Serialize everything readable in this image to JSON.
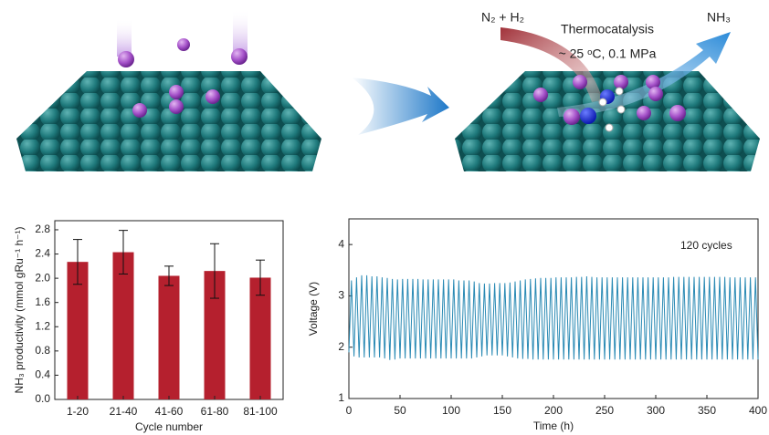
{
  "scheme": {
    "reactants": "N₂ + H₂",
    "process": "Thermocatalysis",
    "conditions": "~ 25 ᵒC, 0.1 MPa",
    "product": "NH₃"
  },
  "chart_data": [
    {
      "type": "bar",
      "xlabel": "Cycle number",
      "ylabel": "NH₃ productivity (mmol gRu⁻¹ h⁻¹)",
      "categories": [
        "1-20",
        "21-40",
        "41-60",
        "61-80",
        "81-100"
      ],
      "values": [
        2.27,
        2.43,
        2.04,
        2.12,
        2.01
      ],
      "errors": [
        0.37,
        0.36,
        0.16,
        0.45,
        0.29
      ],
      "color": "#b5202e",
      "ylim": [
        0,
        2.95
      ],
      "yticks": [
        {
          "value": 0,
          "label": "0.0"
        },
        0.4,
        0.8,
        1.2,
        1.6,
        {
          "value": 2,
          "label": "2.0"
        },
        2.4,
        2.8
      ]
    },
    {
      "type": "line",
      "xlabel": "Time (h)",
      "ylabel": "Voltage (V)",
      "annotation": "120 cycles",
      "xlim": [
        0,
        400
      ],
      "xticks": [
        0,
        50,
        100,
        150,
        200,
        250,
        300,
        350,
        400
      ],
      "ylim": [
        1,
        4.5
      ],
      "yticks": [
        1,
        2,
        3,
        4
      ],
      "x": [
        0,
        2.5,
        5,
        7.5,
        10,
        12.5,
        15,
        17.5,
        20,
        22.5,
        25,
        27.5,
        30,
        32.5,
        35,
        37.5,
        40,
        42.5,
        45,
        47.5,
        50,
        52.5,
        55,
        57.5,
        60,
        62.5,
        65,
        67.5,
        70,
        72.5,
        75,
        77.5,
        80,
        82.5,
        85,
        87.5,
        90,
        92.5,
        95,
        97.5,
        100,
        102.5,
        105,
        107.5,
        110,
        112.5,
        115,
        117.5,
        120,
        122.5,
        125,
        127.5,
        130,
        132.5,
        135,
        137.5,
        140,
        142.5,
        145,
        147.5,
        150,
        152.5,
        155,
        157.5,
        160,
        162.5,
        165,
        167.5,
        170,
        172.5,
        175,
        177.5,
        180,
        182.5,
        185,
        187.5,
        190,
        192.5,
        195,
        197.5,
        200,
        202.5,
        205,
        207.5,
        210,
        212.5,
        215,
        217.5,
        220,
        222.5,
        225,
        227.5,
        230,
        232.5,
        235,
        237.5,
        240,
        242.5,
        245,
        247.5,
        250,
        252.5,
        255,
        257.5,
        260,
        262.5,
        265,
        267.5,
        270,
        272.5,
        275,
        277.5,
        280,
        282.5,
        285,
        287.5,
        290,
        292.5,
        295,
        297.5,
        300,
        302.5,
        305,
        307.5,
        310,
        312.5,
        315,
        317.5,
        320,
        322.5,
        325,
        327.5,
        330,
        332.5,
        335,
        337.5,
        340,
        342.5,
        345,
        347.5,
        350,
        352.5,
        355,
        357.5,
        360,
        362.5,
        365,
        367.5,
        370,
        372.5,
        375,
        377.5,
        380,
        382.5,
        385,
        387.5,
        390,
        392.5,
        395,
        397.5,
        400
      ],
      "series": [
        {
          "color": "#2a8ab4",
          "values": [
            1.9,
            3.3,
            1.82,
            3.36,
            1.8,
            3.4,
            1.8,
            3.4,
            1.8,
            3.38,
            1.8,
            3.38,
            1.8,
            3.36,
            1.78,
            3.35,
            1.75,
            3.33,
            1.76,
            3.32,
            1.78,
            3.33,
            1.78,
            3.33,
            1.78,
            3.33,
            1.78,
            3.33,
            1.78,
            3.32,
            1.78,
            3.32,
            1.78,
            3.32,
            1.78,
            3.32,
            1.78,
            3.32,
            1.78,
            3.32,
            1.78,
            3.32,
            1.78,
            3.3,
            1.78,
            3.3,
            1.78,
            3.3,
            1.78,
            3.28,
            1.8,
            3.25,
            1.82,
            3.24,
            1.84,
            3.24,
            1.84,
            3.25,
            1.84,
            3.25,
            1.84,
            3.25,
            1.82,
            3.26,
            1.8,
            3.28,
            1.78,
            3.3,
            1.77,
            3.32,
            1.77,
            3.33,
            1.76,
            3.34,
            1.76,
            3.35,
            1.76,
            3.35,
            1.76,
            3.35,
            1.76,
            3.36,
            1.76,
            3.36,
            1.76,
            3.36,
            1.76,
            3.36,
            1.76,
            3.37,
            1.76,
            3.37,
            1.76,
            3.38,
            1.76,
            3.37,
            1.76,
            3.36,
            1.76,
            3.36,
            1.76,
            3.36,
            1.76,
            3.36,
            1.76,
            3.36,
            1.76,
            3.36,
            1.76,
            3.36,
            1.76,
            3.36,
            1.76,
            3.36,
            1.76,
            3.36,
            1.76,
            3.36,
            1.76,
            3.36,
            1.76,
            3.36,
            1.76,
            3.36,
            1.76,
            3.36,
            1.76,
            3.37,
            1.76,
            3.37,
            1.76,
            3.37,
            1.76,
            3.37,
            1.76,
            3.37,
            1.76,
            3.37,
            1.76,
            3.37,
            1.76,
            3.37,
            1.76,
            3.37,
            1.76,
            3.37,
            1.76,
            3.37,
            1.76,
            3.36,
            1.76,
            3.36,
            1.76,
            3.36,
            1.76,
            3.36,
            1.76,
            3.36,
            1.76,
            3.36,
            1.76
          ]
        }
      ]
    }
  ]
}
